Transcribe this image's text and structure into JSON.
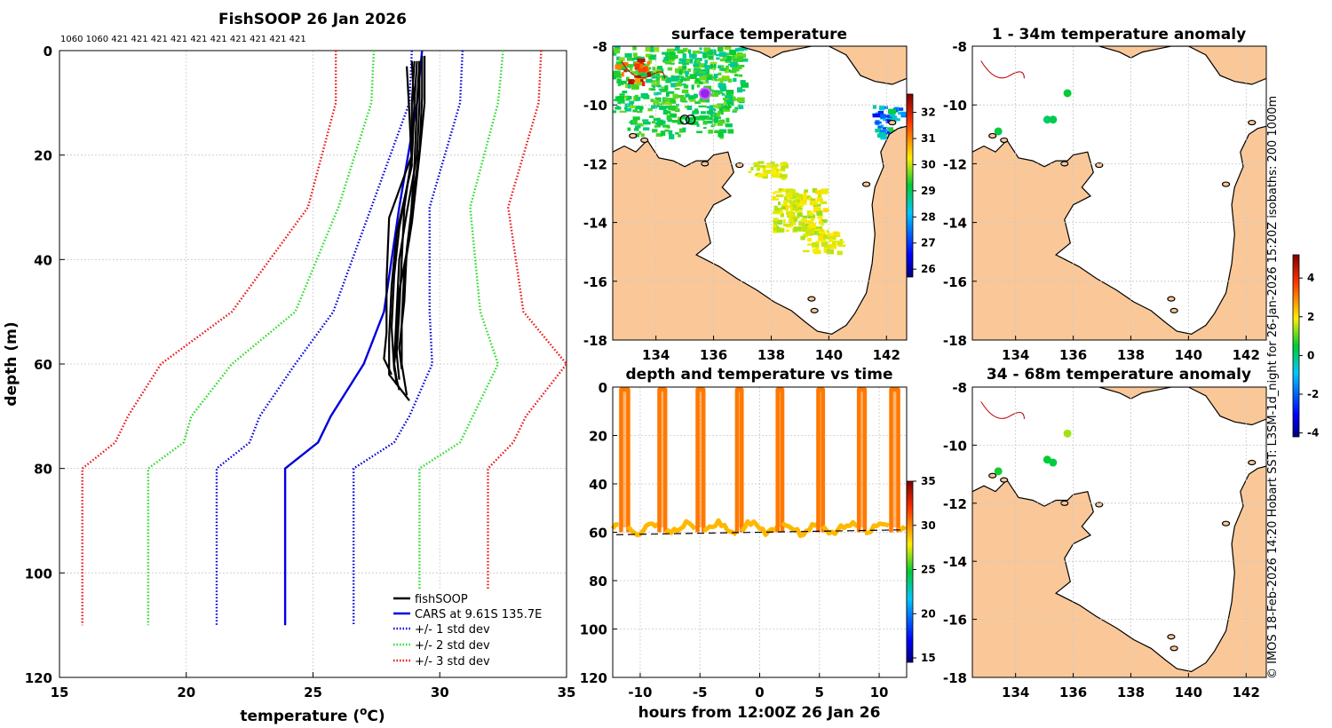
{
  "meta": {
    "title": "FishSOOP 26 Jan 2026",
    "counts_label": "1060 1060 421 421 421 421 421 421 421 421 421 421",
    "credit": "© IMOS 18-Feb-2026 14:20 Hobart SST: L3SM-1d_night for 26-Jan-2026 15:20Z isobaths: 200  1000m"
  },
  "chart_data": [
    {
      "id": "profile",
      "type": "line",
      "title": "FishSOOP 26 Jan 2026",
      "xlabel": "temperature (°C)",
      "ylabel": "depth (m)",
      "xlim": [
        15,
        35
      ],
      "ylim": [
        0,
        120
      ],
      "y_reversed": true,
      "grid": true,
      "xticks": [
        15,
        20,
        25,
        30,
        35
      ],
      "yticks": [
        0,
        20,
        40,
        60,
        80,
        100,
        120
      ],
      "legend_position": "bottom-right",
      "legend": [
        "fishSOOP",
        "CARS at 9.61S 135.7E",
        "+/- 1 std dev",
        "+/- 2 std dev",
        "+/- 3 std dev"
      ],
      "colors": {
        "fishsoop": "#000000",
        "cars": "#0000dd",
        "sd1": "#0000dd",
        "sd2": "#22dd22",
        "sd3": "#ee1111"
      },
      "depths": [
        0,
        10,
        30,
        50,
        60,
        70,
        75,
        80,
        110
      ],
      "cars_mean": [
        29.3,
        29.1,
        28.4,
        27.8,
        27.0,
        25.7,
        25.2,
        23.9,
        23.9
      ],
      "sd1_low": [
        28.9,
        28.8,
        27.3,
        25.8,
        24.3,
        22.9,
        22.5,
        21.2,
        21.2
      ],
      "sd1_high": [
        30.9,
        30.8,
        29.6,
        29.6,
        29.7,
        28.8,
        28.2,
        26.6,
        26.6
      ],
      "sd2_low": [
        27.4,
        27.3,
        26.0,
        24.3,
        21.8,
        20.2,
        19.9,
        18.5,
        18.5
      ],
      "sd2_high": [
        32.5,
        32.3,
        31.2,
        31.6,
        32.3,
        31.3,
        30.8,
        29.2,
        29.2
      ],
      "sd3_low": [
        25.9,
        25.9,
        24.8,
        21.8,
        19.0,
        17.7,
        17.2,
        15.9,
        15.9
      ],
      "sd3_high": [
        34.0,
        33.9,
        32.7,
        33.3,
        35.0,
        33.4,
        32.9,
        31.9,
        31.9
      ],
      "fishsoop_profiles": [
        {
          "depth": [
            2,
            10,
            20,
            30,
            40,
            50,
            58,
            63
          ],
          "temp": [
            29.0,
            28.9,
            28.9,
            28.6,
            28.5,
            28.4,
            28.3,
            28.4
          ]
        },
        {
          "depth": [
            2,
            10,
            20,
            31,
            40,
            50,
            60,
            64
          ],
          "temp": [
            29.2,
            29.2,
            29.1,
            28.7,
            28.4,
            28.3,
            28.2,
            28.3
          ]
        },
        {
          "depth": [
            1,
            10,
            20,
            33,
            42,
            52,
            60,
            66
          ],
          "temp": [
            29.4,
            29.4,
            29.2,
            28.9,
            28.6,
            28.5,
            28.5,
            28.7
          ]
        },
        {
          "depth": [
            3,
            12,
            22,
            35,
            45,
            55,
            62,
            67
          ],
          "temp": [
            28.7,
            28.8,
            28.9,
            28.3,
            28.1,
            28.0,
            28.0,
            28.8
          ]
        },
        {
          "depth": [
            2,
            10,
            20,
            32,
            44,
            54,
            59,
            62
          ],
          "temp": [
            29.1,
            29.0,
            28.9,
            28.0,
            27.9,
            27.9,
            27.8,
            28.1
          ]
        },
        {
          "depth": [
            1,
            9,
            19,
            30,
            38,
            48,
            57,
            61
          ],
          "temp": [
            29.3,
            29.3,
            29.2,
            28.9,
            28.7,
            28.6,
            28.4,
            28.5
          ]
        },
        {
          "depth": [
            2,
            11,
            21,
            34,
            43,
            53,
            61,
            65
          ],
          "temp": [
            28.9,
            29.0,
            28.9,
            28.4,
            28.2,
            28.1,
            28.2,
            28.4
          ]
        },
        {
          "depth": [
            2,
            10,
            22,
            36,
            46,
            56,
            60,
            63
          ],
          "temp": [
            29.2,
            29.1,
            29.0,
            28.8,
            28.4,
            28.3,
            28.2,
            28.3
          ]
        }
      ]
    },
    {
      "id": "sst_map",
      "type": "heatmap",
      "title": "surface temperature",
      "xlim": [
        132.5,
        142.7
      ],
      "ylim": [
        -18,
        -8
      ],
      "xticks": [
        134,
        136,
        138,
        140,
        142
      ],
      "yticks": [
        -8,
        -10,
        -12,
        -14,
        -16,
        -18
      ],
      "colorbar": {
        "min": 25.7,
        "max": 32.7,
        "ticks": [
          26,
          27,
          28,
          29,
          30,
          31,
          32
        ]
      },
      "ship_track": [
        {
          "lon": 135.2,
          "lat": -10.5
        },
        {
          "lon": 135.0,
          "lat": -10.5
        }
      ],
      "cars_location": {
        "lon": 135.7,
        "lat": -9.61
      }
    },
    {
      "id": "depth_time",
      "type": "scatter",
      "title": "depth and temperature vs time",
      "xlabel": "hours from 12:00Z 26 Jan 26",
      "xlim": [
        -12.3,
        12.3
      ],
      "ylim": [
        0,
        120
      ],
      "y_reversed": true,
      "xticks": [
        -10,
        -5,
        0,
        5,
        10
      ],
      "yticks": [
        0,
        20,
        40,
        60,
        80,
        100,
        120
      ],
      "colorbar": {
        "min": 14.5,
        "max": 35,
        "ticks": [
          15,
          20,
          25,
          30,
          35
        ]
      },
      "bottom_depth": [
        [
          -12,
          61.0
        ],
        [
          12,
          59.0
        ]
      ],
      "dives": [
        {
          "start": -11.6,
          "end": -11.0,
          "surface_temp": 30.4,
          "bottom_temp": 29.0
        },
        {
          "start": -8.4,
          "end": -7.9,
          "surface_temp": 30.4,
          "bottom_temp": 29.0
        },
        {
          "start": -5.2,
          "end": -4.7,
          "surface_temp": 30.4,
          "bottom_temp": 29.0
        },
        {
          "start": -1.9,
          "end": -1.5,
          "surface_temp": 30.4,
          "bottom_temp": 29.0
        },
        {
          "start": 1.5,
          "end": 1.9,
          "surface_temp": 30.4,
          "bottom_temp": 29.0
        },
        {
          "start": 4.9,
          "end": 5.3,
          "surface_temp": 30.4,
          "bottom_temp": 29.0
        },
        {
          "start": 8.3,
          "end": 8.8,
          "surface_temp": 30.4,
          "bottom_temp": 29.0
        },
        {
          "start": 11.0,
          "end": 11.6,
          "surface_temp": 30.4,
          "bottom_temp": 29.0
        }
      ]
    },
    {
      "id": "anom_upper",
      "type": "scatter",
      "title": "1 - 34m temperature anomaly",
      "xlim": [
        132.5,
        142.7
      ],
      "ylim": [
        -18,
        -8
      ],
      "xticks": [
        134,
        136,
        138,
        140,
        142
      ],
      "yticks": [
        -8,
        -10,
        -12,
        -14,
        -16,
        -18
      ],
      "points": [
        {
          "lon": 133.4,
          "lat": -10.9,
          "anomaly": 0.4
        },
        {
          "lon": 135.1,
          "lat": -10.5,
          "anomaly": 0.2
        },
        {
          "lon": 135.3,
          "lat": -10.5,
          "anomaly": 0.3
        },
        {
          "lon": 135.8,
          "lat": -9.6,
          "anomaly": 0.5
        }
      ]
    },
    {
      "id": "anom_lower",
      "type": "scatter",
      "title": "34 - 68m temperature anomaly",
      "xlim": [
        132.5,
        142.7
      ],
      "ylim": [
        -18,
        -8
      ],
      "xticks": [
        134,
        136,
        138,
        140,
        142
      ],
      "yticks": [
        -8,
        -10,
        -12,
        -14,
        -16,
        -18
      ],
      "points": [
        {
          "lon": 133.4,
          "lat": -10.9,
          "anomaly": 0.6
        },
        {
          "lon": 135.1,
          "lat": -10.5,
          "anomaly": 0.5
        },
        {
          "lon": 135.3,
          "lat": -10.6,
          "anomaly": 0.4
        },
        {
          "lon": 135.8,
          "lat": -9.6,
          "anomaly": 1.4
        }
      ],
      "colorbar": {
        "min": -4.2,
        "max": 5.2,
        "ticks": [
          -4,
          -2,
          0,
          2,
          4
        ]
      }
    }
  ]
}
